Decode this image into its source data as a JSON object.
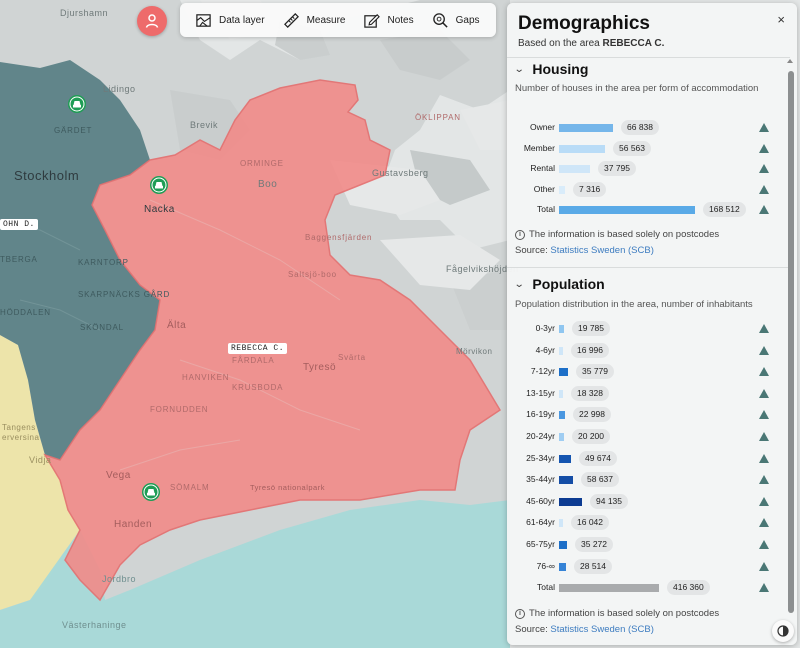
{
  "map": {
    "labels": {
      "djurshamn": "Djurshamn",
      "lidingo": "Lidingo",
      "brevik": "Brevik",
      "gardet": "GÄRDET",
      "stockholm": "Stockholm",
      "nacka": "Nacka",
      "boo": "Boo",
      "gustavsberg": "Gustavsberg",
      "orminge": "ORMINGE",
      "saltsjo": "Saltsjö-boo",
      "baggensfjarden": "Baggensfjärden",
      "fagelviksh": "Fågelvikshöjden",
      "karntorp": "KARNTORP",
      "skarpnacks_gard": "SKARPNÄCKS GÅRD",
      "skondal": "SKÖNDAL",
      "hoddalen": "HÖDDALEN",
      "alta": "Älta",
      "tyreso": "Tyresö",
      "trollbacken": "Trollbäcken",
      "hanviken": "HANVIKEN",
      "fardala": "FÅRDALA",
      "krusboda": "KRUSBODA",
      "fornudden": "FORNUDDEN",
      "vega": "Vega",
      "handen": "Handen",
      "somalm": "SÖMALM",
      "tyreso_nat": "Tyresö nationalpark",
      "jordbro": "Jordbro",
      "vasterhaninge": "Västerhaninge",
      "vidja": "Vidja",
      "tangens": "Tangens",
      "ervesina": "erversina",
      "ohnd": "OHN D.",
      "tberga": "TBERGA",
      "morvikon": "Mörvikon",
      "svarta": "Svärta",
      "oklippan": "ÖKLIPPAN"
    },
    "area_tag": "REBECCA C.",
    "left_tag": "OHN D.",
    "colors": {
      "water": "#e4e6e6",
      "land": "#d3d6d6",
      "selected_area": "#f08686",
      "neighbor_teal": "#5a8186",
      "neighbor_yellow": "#efe6a8",
      "neighbor_cyan": "#a7d9d8",
      "marker": "#1f9d55"
    }
  },
  "toolbar": {
    "avatar_icon": "user-icon",
    "items": [
      {
        "label": "Data layer",
        "icon": "map-layers-icon"
      },
      {
        "label": "Measure",
        "icon": "ruler-icon"
      },
      {
        "label": "Notes",
        "icon": "note-icon"
      },
      {
        "label": "Gaps",
        "icon": "search-gap-icon"
      }
    ]
  },
  "panel": {
    "title": "Demographics",
    "subtitle_prefix": "Based on the area",
    "subtitle_area": "REBECCA C.",
    "close_label": "×",
    "housing": {
      "title": "Housing",
      "description": "Number of houses in the area per form of accommodation",
      "bar_color": "#6db3ea",
      "rows": [
        {
          "label": "Owner",
          "value": "66 838",
          "n": 66838,
          "color": "#75b6ea"
        },
        {
          "label": "Member",
          "value": "56 563",
          "n": 56563,
          "color": "#b9dcf7"
        },
        {
          "label": "Rental",
          "value": "37 795",
          "n": 37795,
          "color": "#cfe6f8"
        },
        {
          "label": "Other",
          "value": "7 316",
          "n": 7316,
          "color": "#d9ecfa"
        },
        {
          "label": "Total",
          "value": "168 512",
          "n": 168512,
          "color": "#5aaae7"
        }
      ],
      "info": "The information is based solely on postcodes",
      "source_prefix": "Source:",
      "source_link": "Statistics Sweden (SCB)"
    },
    "population": {
      "title": "Population",
      "description": "Population distribution in the area, number of inhabitants",
      "rows": [
        {
          "label": "0-3yr",
          "value": "19 785",
          "n": 19785,
          "color": "#8fc6f0"
        },
        {
          "label": "4-6yr",
          "value": "16 996",
          "n": 16996,
          "color": "#cfe6f8"
        },
        {
          "label": "7-12yr",
          "value": "35 779",
          "n": 35779,
          "color": "#1d6fc8"
        },
        {
          "label": "13-15yr",
          "value": "18 328",
          "n": 18328,
          "color": "#cfe6f8"
        },
        {
          "label": "16-19yr",
          "value": "22 998",
          "n": 22998,
          "color": "#4a97e0"
        },
        {
          "label": "20-24yr",
          "value": "20 200",
          "n": 20200,
          "color": "#9fcdf2"
        },
        {
          "label": "25-34yr",
          "value": "49 674",
          "n": 49674,
          "color": "#1555b0"
        },
        {
          "label": "35-44yr",
          "value": "58 637",
          "n": 58637,
          "color": "#154ea6"
        },
        {
          "label": "45-60yr",
          "value": "94 135",
          "n": 94135,
          "color": "#0d3c92"
        },
        {
          "label": "61-64yr",
          "value": "16 042",
          "n": 16042,
          "color": "#cfe6f8"
        },
        {
          "label": "65-75yr",
          "value": "35 272",
          "n": 35272,
          "color": "#1d6fc8"
        },
        {
          "label": "76-∞",
          "value": "28 514",
          "n": 28514,
          "color": "#3583d6"
        },
        {
          "label": "Total",
          "value": "416 360",
          "n": 416360,
          "color": "#a9abad"
        }
      ],
      "info": "The information is based solely on postcodes",
      "source_prefix": "Source:",
      "source_link": "Statistics Sweden (SCB)"
    },
    "triangle_color": "#4a7775"
  }
}
